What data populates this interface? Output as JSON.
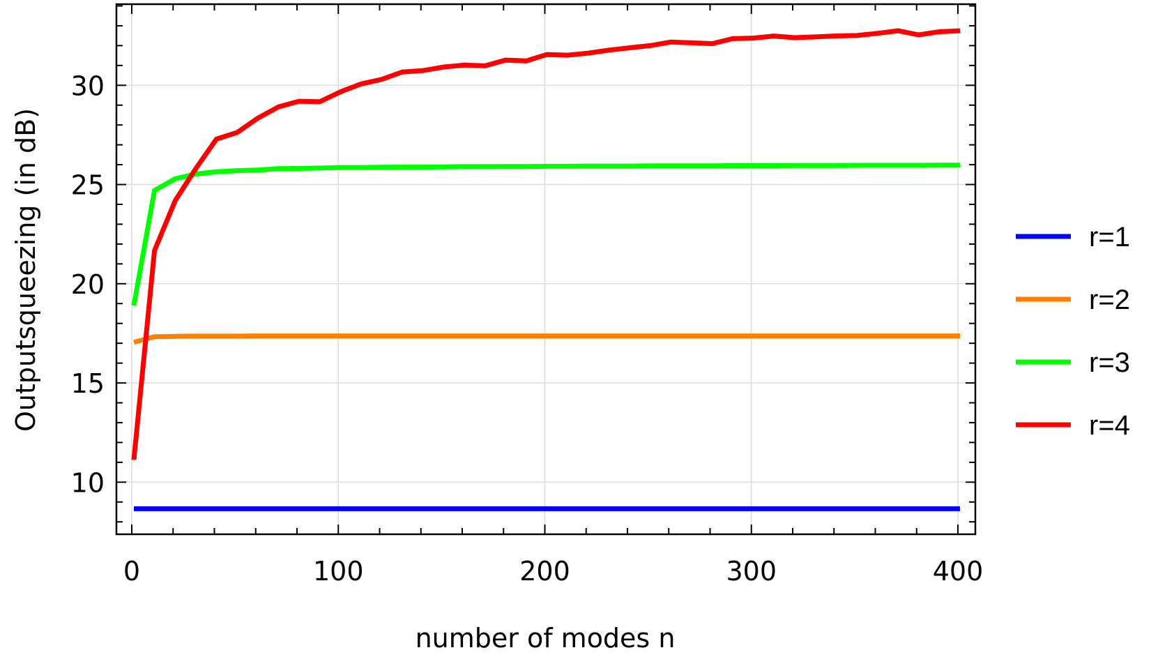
{
  "chart_data": {
    "type": "line",
    "title": "",
    "xlabel": "number of modes n",
    "ylabel": "Outputsqueezing (in dB)",
    "xlim": [
      -8,
      410
    ],
    "ylim": [
      7.4,
      34.1
    ],
    "xticks": [
      0,
      100,
      200,
      300,
      400
    ],
    "yticks": [
      10,
      15,
      20,
      25,
      30
    ],
    "x_minor_step": 20,
    "y_minor_step": 1,
    "grid": true,
    "legend_position": "right",
    "x": [
      1,
      11,
      21,
      31,
      41,
      51,
      61,
      71,
      81,
      91,
      101,
      111,
      121,
      131,
      141,
      151,
      161,
      171,
      181,
      191,
      201,
      211,
      221,
      231,
      241,
      251,
      261,
      271,
      281,
      291,
      301,
      311,
      321,
      331,
      341,
      351,
      361,
      371,
      381,
      391,
      401
    ],
    "series": [
      {
        "name": "r=1",
        "color": "#0000ff",
        "values": [
          8.66,
          8.66,
          8.66,
          8.66,
          8.66,
          8.66,
          8.66,
          8.66,
          8.66,
          8.66,
          8.66,
          8.66,
          8.66,
          8.66,
          8.66,
          8.66,
          8.66,
          8.66,
          8.66,
          8.66,
          8.66,
          8.66,
          8.66,
          8.66,
          8.66,
          8.66,
          8.66,
          8.66,
          8.66,
          8.66,
          8.66,
          8.66,
          8.66,
          8.66,
          8.66,
          8.66,
          8.66,
          8.66,
          8.66,
          8.66,
          8.66
        ]
      },
      {
        "name": "r=2",
        "color": "#ff8000",
        "values": [
          17.05,
          17.33,
          17.35,
          17.36,
          17.36,
          17.36,
          17.37,
          17.37,
          17.37,
          17.37,
          17.37,
          17.37,
          17.37,
          17.37,
          17.37,
          17.37,
          17.37,
          17.37,
          17.37,
          17.37,
          17.37,
          17.37,
          17.37,
          17.37,
          17.37,
          17.37,
          17.37,
          17.37,
          17.37,
          17.37,
          17.37,
          17.37,
          17.37,
          17.37,
          17.37,
          17.37,
          17.37,
          17.37,
          17.37,
          17.37,
          17.37
        ]
      },
      {
        "name": "r=3",
        "color": "#00ff00",
        "values": [
          18.9,
          24.7,
          25.29,
          25.53,
          25.64,
          25.7,
          25.73,
          25.8,
          25.81,
          25.83,
          25.86,
          25.86,
          25.87,
          25.88,
          25.88,
          25.89,
          25.9,
          25.9,
          25.91,
          25.91,
          25.92,
          25.92,
          25.93,
          25.93,
          25.93,
          25.94,
          25.94,
          25.94,
          25.94,
          25.95,
          25.95,
          25.95,
          25.96,
          25.96,
          25.96,
          25.97,
          25.97,
          25.97,
          25.97,
          25.98,
          25.98
        ]
      },
      {
        "name": "r=4",
        "color": "#ff0000",
        "values": [
          11.13,
          21.67,
          24.18,
          25.8,
          27.29,
          27.62,
          28.34,
          28.91,
          29.2,
          29.17,
          29.67,
          30.07,
          30.3,
          30.67,
          30.74,
          30.92,
          31.02,
          30.98,
          31.27,
          31.23,
          31.55,
          31.52,
          31.62,
          31.77,
          31.89,
          32.0,
          32.18,
          32.14,
          32.1,
          32.35,
          32.38,
          32.48,
          32.4,
          32.44,
          32.49,
          32.51,
          32.62,
          32.75,
          32.54,
          32.7,
          32.75
        ]
      }
    ]
  },
  "axes": {
    "x_title": "number of modes n",
    "y_title": "Outputsqueezing (in dB)",
    "x_tick_labels": [
      "0",
      "100",
      "200",
      "300",
      "400"
    ],
    "y_tick_labels": [
      "10",
      "15",
      "20",
      "25",
      "30"
    ]
  },
  "legend": {
    "items": [
      {
        "label": "r=1",
        "color": "#0000ff"
      },
      {
        "label": "r=2",
        "color": "#ff8000"
      },
      {
        "label": "r=3",
        "color": "#00ff00"
      },
      {
        "label": "r=4",
        "color": "#ff0000"
      }
    ]
  }
}
